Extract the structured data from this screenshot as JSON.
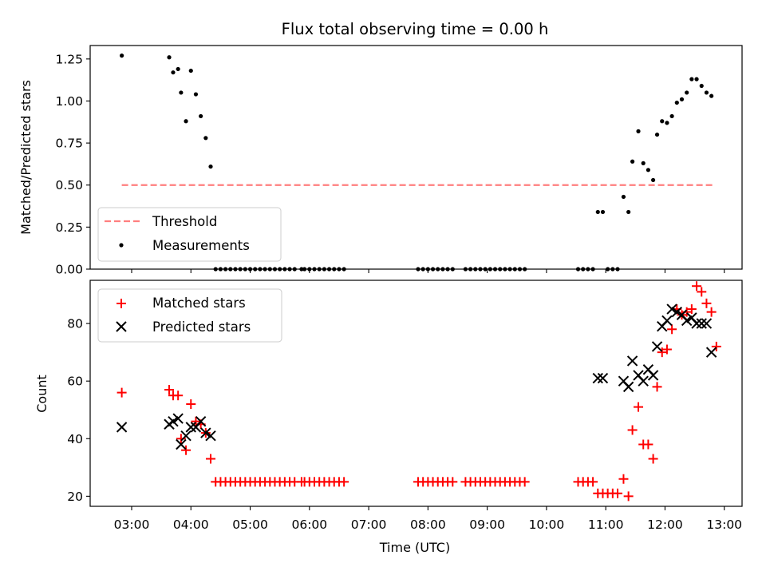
{
  "chart_data": [
    {
      "panel": "top",
      "type": "scatter",
      "title": "Flux total observing time = 0.00 h",
      "ylabel": "Matched/Predicted stars",
      "xlabel": "",
      "ylim": [
        0,
        1.33
      ],
      "yticks": [
        0.0,
        0.25,
        0.5,
        0.75,
        1.0,
        1.25
      ],
      "ytick_labels": [
        "0.00",
        "0.25",
        "0.50",
        "0.75",
        "1.00",
        "1.25"
      ],
      "legend_placement": "lower-left",
      "threshold": {
        "name": "Threshold",
        "value": 0.5,
        "x_start": "02:50",
        "x_end": "12:50",
        "color": "#ff7f7f"
      },
      "series": [
        {
          "name": "Measurements",
          "color": "#000000",
          "points": [
            [
              "02:50",
              1.27
            ],
            [
              "03:38",
              1.26
            ],
            [
              "03:42",
              1.17
            ],
            [
              "03:47",
              1.19
            ],
            [
              "03:50",
              1.05
            ],
            [
              "03:55",
              0.88
            ],
            [
              "04:00",
              1.18
            ],
            [
              "04:05",
              1.04
            ],
            [
              "04:10",
              0.91
            ],
            [
              "04:15",
              0.78
            ],
            [
              "04:20",
              0.61
            ],
            [
              "04:25",
              0.0
            ],
            [
              "04:30",
              0.0
            ],
            [
              "04:35",
              0.0
            ],
            [
              "04:40",
              0.0
            ],
            [
              "04:45",
              0.0
            ],
            [
              "04:50",
              0.0
            ],
            [
              "04:55",
              0.0
            ],
            [
              "05:00",
              0.0
            ],
            [
              "05:05",
              0.0
            ],
            [
              "05:10",
              0.0
            ],
            [
              "05:15",
              0.0
            ],
            [
              "05:20",
              0.0
            ],
            [
              "05:25",
              0.0
            ],
            [
              "05:30",
              0.0
            ],
            [
              "05:35",
              0.0
            ],
            [
              "05:40",
              0.0
            ],
            [
              "05:45",
              0.0
            ],
            [
              "05:52",
              0.0
            ],
            [
              "05:55",
              0.0
            ],
            [
              "06:00",
              0.0
            ],
            [
              "06:05",
              0.0
            ],
            [
              "06:10",
              0.0
            ],
            [
              "06:15",
              0.0
            ],
            [
              "06:20",
              0.0
            ],
            [
              "06:25",
              0.0
            ],
            [
              "06:30",
              0.0
            ],
            [
              "06:35",
              0.0
            ],
            [
              "07:50",
              0.0
            ],
            [
              "07:55",
              0.0
            ],
            [
              "08:00",
              0.0
            ],
            [
              "08:05",
              0.0
            ],
            [
              "08:10",
              0.0
            ],
            [
              "08:15",
              0.0
            ],
            [
              "08:20",
              0.0
            ],
            [
              "08:25",
              0.0
            ],
            [
              "08:38",
              0.0
            ],
            [
              "08:43",
              0.0
            ],
            [
              "08:48",
              0.0
            ],
            [
              "08:53",
              0.0
            ],
            [
              "08:58",
              0.0
            ],
            [
              "09:03",
              0.0
            ],
            [
              "09:08",
              0.0
            ],
            [
              "09:13",
              0.0
            ],
            [
              "09:18",
              0.0
            ],
            [
              "09:23",
              0.0
            ],
            [
              "09:28",
              0.0
            ],
            [
              "09:33",
              0.0
            ],
            [
              "09:38",
              0.0
            ],
            [
              "10:32",
              0.0
            ],
            [
              "10:37",
              0.0
            ],
            [
              "10:42",
              0.0
            ],
            [
              "10:47",
              0.0
            ],
            [
              "10:52",
              0.34
            ],
            [
              "10:57",
              0.34
            ],
            [
              "11:02",
              0.0
            ],
            [
              "11:07",
              0.0
            ],
            [
              "11:12",
              0.0
            ],
            [
              "11:18",
              0.43
            ],
            [
              "11:23",
              0.34
            ],
            [
              "11:27",
              0.64
            ],
            [
              "11:33",
              0.82
            ],
            [
              "11:38",
              0.63
            ],
            [
              "11:43",
              0.59
            ],
            [
              "11:48",
              0.53
            ],
            [
              "11:52",
              0.8
            ],
            [
              "11:57",
              0.88
            ],
            [
              "12:02",
              0.87
            ],
            [
              "12:07",
              0.91
            ],
            [
              "12:12",
              0.99
            ],
            [
              "12:17",
              1.01
            ],
            [
              "12:22",
              1.05
            ],
            [
              "12:27",
              1.13
            ],
            [
              "12:32",
              1.13
            ],
            [
              "12:37",
              1.09
            ],
            [
              "12:42",
              1.05
            ],
            [
              "12:47",
              1.03
            ]
          ]
        }
      ]
    },
    {
      "panel": "bottom",
      "type": "scatter",
      "title": "",
      "ylabel": "Count",
      "xlabel": "Time (UTC)",
      "ylim": [
        16.5,
        95
      ],
      "yticks": [
        20,
        40,
        60,
        80
      ],
      "ytick_labels": [
        "20",
        "40",
        "60",
        "80"
      ],
      "xlim": [
        "02:18",
        "13:18"
      ],
      "xticks": [
        "03:00",
        "04:00",
        "05:00",
        "06:00",
        "07:00",
        "08:00",
        "09:00",
        "10:00",
        "11:00",
        "12:00",
        "13:00"
      ],
      "xtick_labels": [
        "03:00",
        "04:00",
        "05:00",
        "06:00",
        "07:00",
        "08:00",
        "09:00",
        "10:00",
        "11:00",
        "12:00",
        "13:00"
      ],
      "legend_placement": "upper-left",
      "series": [
        {
          "name": "Matched stars",
          "marker": "plus",
          "color": "#ff0000",
          "points": [
            [
              "02:50",
              56
            ],
            [
              "03:38",
              57
            ],
            [
              "03:42",
              55
            ],
            [
              "03:47",
              55
            ],
            [
              "03:50",
              40
            ],
            [
              "03:55",
              36
            ],
            [
              "04:00",
              52
            ],
            [
              "04:05",
              46
            ],
            [
              "04:10",
              45
            ],
            [
              "04:15",
              42
            ],
            [
              "04:20",
              33
            ],
            [
              "04:25",
              25
            ],
            [
              "04:30",
              25
            ],
            [
              "04:35",
              25
            ],
            [
              "04:40",
              25
            ],
            [
              "04:45",
              25
            ],
            [
              "04:50",
              25
            ],
            [
              "04:55",
              25
            ],
            [
              "05:00",
              25
            ],
            [
              "05:05",
              25
            ],
            [
              "05:10",
              25
            ],
            [
              "05:15",
              25
            ],
            [
              "05:20",
              25
            ],
            [
              "05:25",
              25
            ],
            [
              "05:30",
              25
            ],
            [
              "05:35",
              25
            ],
            [
              "05:40",
              25
            ],
            [
              "05:45",
              25
            ],
            [
              "05:52",
              25
            ],
            [
              "05:55",
              25
            ],
            [
              "06:00",
              25
            ],
            [
              "06:05",
              25
            ],
            [
              "06:10",
              25
            ],
            [
              "06:15",
              25
            ],
            [
              "06:20",
              25
            ],
            [
              "06:25",
              25
            ],
            [
              "06:30",
              25
            ],
            [
              "06:35",
              25
            ],
            [
              "07:50",
              25
            ],
            [
              "07:55",
              25
            ],
            [
              "08:00",
              25
            ],
            [
              "08:05",
              25
            ],
            [
              "08:10",
              25
            ],
            [
              "08:15",
              25
            ],
            [
              "08:20",
              25
            ],
            [
              "08:25",
              25
            ],
            [
              "08:38",
              25
            ],
            [
              "08:43",
              25
            ],
            [
              "08:48",
              25
            ],
            [
              "08:53",
              25
            ],
            [
              "08:58",
              25
            ],
            [
              "09:03",
              25
            ],
            [
              "09:08",
              25
            ],
            [
              "09:13",
              25
            ],
            [
              "09:18",
              25
            ],
            [
              "09:23",
              25
            ],
            [
              "09:28",
              25
            ],
            [
              "09:33",
              25
            ],
            [
              "09:38",
              25
            ],
            [
              "10:32",
              25
            ],
            [
              "10:37",
              25
            ],
            [
              "10:42",
              25
            ],
            [
              "10:47",
              25
            ],
            [
              "10:52",
              21
            ],
            [
              "10:57",
              21
            ],
            [
              "11:02",
              21
            ],
            [
              "11:07",
              21
            ],
            [
              "11:12",
              21
            ],
            [
              "11:18",
              26
            ],
            [
              "11:23",
              20
            ],
            [
              "11:27",
              43
            ],
            [
              "11:33",
              51
            ],
            [
              "11:38",
              38
            ],
            [
              "11:43",
              38
            ],
            [
              "11:48",
              33
            ],
            [
              "11:52",
              58
            ],
            [
              "11:57",
              70
            ],
            [
              "12:02",
              71
            ],
            [
              "12:07",
              78
            ],
            [
              "12:12",
              85
            ],
            [
              "12:17",
              83
            ],
            [
              "12:22",
              84
            ],
            [
              "12:27",
              85
            ],
            [
              "12:32",
              93
            ],
            [
              "12:37",
              91
            ],
            [
              "12:42",
              87
            ],
            [
              "12:47",
              84
            ],
            [
              "12:52",
              72
            ]
          ]
        },
        {
          "name": "Predicted stars",
          "marker": "x",
          "color": "#000000",
          "points": [
            [
              "02:50",
              44
            ],
            [
              "03:38",
              45
            ],
            [
              "03:42",
              46
            ],
            [
              "03:47",
              47
            ],
            [
              "03:50",
              38
            ],
            [
              "03:55",
              41
            ],
            [
              "04:00",
              44
            ],
            [
              "04:05",
              44
            ],
            [
              "04:10",
              46
            ],
            [
              "04:15",
              42
            ],
            [
              "04:20",
              41
            ],
            [
              "10:52",
              61
            ],
            [
              "10:57",
              61
            ],
            [
              "11:18",
              60
            ],
            [
              "11:23",
              58
            ],
            [
              "11:27",
              67
            ],
            [
              "11:33",
              62
            ],
            [
              "11:38",
              60
            ],
            [
              "11:43",
              64
            ],
            [
              "11:48",
              62
            ],
            [
              "11:52",
              72
            ],
            [
              "11:57",
              79
            ],
            [
              "12:02",
              81
            ],
            [
              "12:07",
              85
            ],
            [
              "12:12",
              84
            ],
            [
              "12:17",
              83
            ],
            [
              "12:22",
              81
            ],
            [
              "12:27",
              82
            ],
            [
              "12:32",
              80
            ],
            [
              "12:37",
              80
            ],
            [
              "12:42",
              80
            ],
            [
              "12:47",
              70
            ]
          ]
        }
      ]
    }
  ]
}
